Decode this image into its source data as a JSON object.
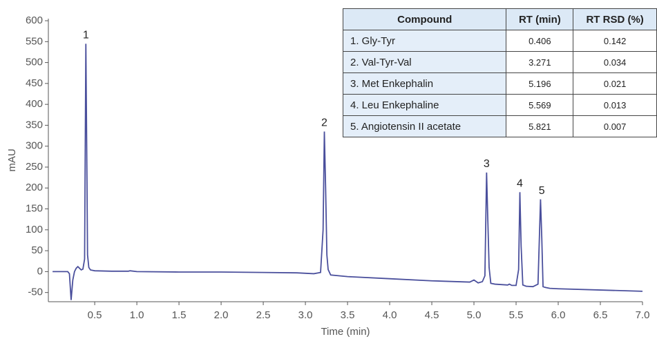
{
  "chart_data": {
    "type": "line",
    "x": [
      0.0,
      0.1,
      0.18,
      0.2,
      0.22,
      0.24,
      0.26,
      0.28,
      0.3,
      0.32,
      0.34,
      0.36,
      0.38,
      0.395,
      0.405,
      0.415,
      0.43,
      0.45,
      0.5,
      0.7,
      0.9,
      0.92,
      1.0,
      1.5,
      2.0,
      2.5,
      2.9,
      3.1,
      3.18,
      3.21,
      3.225,
      3.24,
      3.255,
      3.27,
      3.3,
      3.5,
      4.0,
      4.5,
      4.95,
      5.0,
      5.05,
      5.1,
      5.13,
      5.15,
      5.165,
      5.18,
      5.2,
      5.25,
      5.4,
      5.42,
      5.45,
      5.5,
      5.53,
      5.545,
      5.56,
      5.58,
      5.62,
      5.7,
      5.76,
      5.79,
      5.805,
      5.82,
      5.85,
      5.9,
      6.0,
      6.5,
      7.0
    ],
    "values": [
      0,
      0,
      0,
      -5,
      -68,
      -20,
      0,
      8,
      12,
      8,
      4,
      6,
      30,
      545,
      300,
      40,
      10,
      4,
      2,
      1,
      1,
      2,
      0,
      -1,
      -1,
      -2,
      -3,
      -5,
      -2,
      100,
      335,
      200,
      40,
      5,
      -8,
      -12,
      -17,
      -22,
      -25,
      -20,
      -27,
      -24,
      -10,
      237,
      120,
      10,
      -28,
      -30,
      -32,
      -30,
      -33,
      -33,
      5,
      190,
      60,
      -32,
      -35,
      -36,
      -30,
      173,
      80,
      -36,
      -38,
      -40,
      -41,
      -44,
      -47
    ],
    "color": "#4a4f9c",
    "xlabel": "Time (min)",
    "ylabel": "mAU",
    "xlim": [
      -0.05,
      7.0
    ],
    "ylim": [
      -72,
      605
    ],
    "xticks": [
      0.5,
      {
        "value": 1,
        "label": "1.0"
      },
      1.5,
      {
        "value": 2,
        "label": "2.0"
      },
      2.5,
      {
        "value": 3,
        "label": "3.0"
      },
      3.5,
      {
        "value": 4,
        "label": "4.0"
      },
      4.5,
      {
        "value": 5,
        "label": "5.0"
      },
      5.5,
      {
        "value": 6,
        "label": "6.0"
      },
      6.5,
      {
        "value": 7,
        "label": "7.0"
      }
    ],
    "yticks": [
      -50,
      0,
      50,
      100,
      150,
      200,
      250,
      300,
      350,
      400,
      450,
      500,
      550,
      600
    ],
    "annotations": [
      {
        "text": "1",
        "x": 0.395,
        "y": 545
      },
      {
        "text": "2",
        "x": 3.225,
        "y": 335
      },
      {
        "text": "3",
        "x": 5.15,
        "y": 237
      },
      {
        "text": "4",
        "x": 5.545,
        "y": 190
      },
      {
        "text": "5",
        "x": 5.805,
        "y": 173
      }
    ]
  },
  "table": {
    "header": [
      "Compound",
      "RT (min)",
      "RT RSD (%)"
    ],
    "rows": [
      [
        "1. Gly-Tyr",
        "0.406",
        "0.142"
      ],
      [
        "2. Val-Tyr-Val",
        "3.271",
        "0.034"
      ],
      [
        "3. Met Enkephalin",
        "5.196",
        "0.021"
      ],
      [
        "4. Leu Enkephaline",
        "5.569",
        "0.013"
      ],
      [
        "5. Angiotensin II acetate",
        "5.821",
        "0.007"
      ]
    ]
  }
}
